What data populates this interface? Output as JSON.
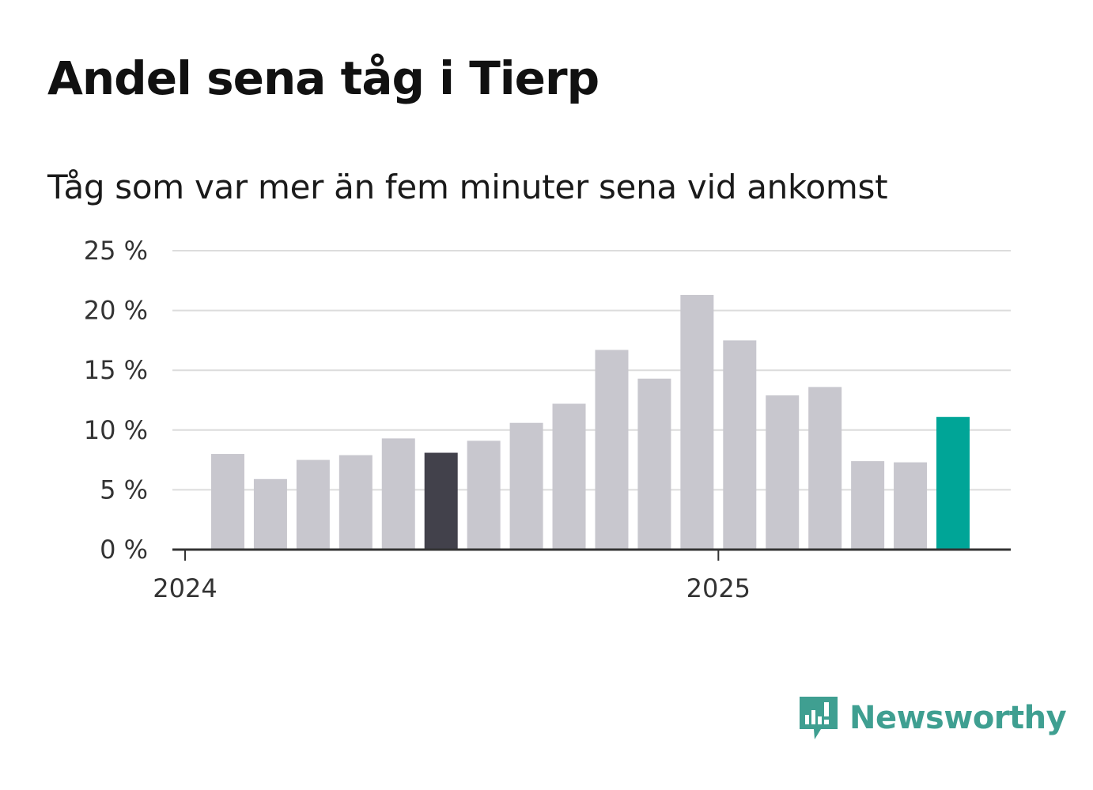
{
  "title": "Andel sena tåg i Tierp",
  "subtitle": "Tåg som var mer än fem minuter sena vid ankomst",
  "brand": {
    "name": "Newsworthy",
    "color": "#3f9f91",
    "icon": "newsworthy-logo-icon"
  },
  "colors": {
    "bar": "#c8c7ce",
    "highlight": "#42414b",
    "latest": "#00a597",
    "grid": "#dcdcdc",
    "axis": "#333333"
  },
  "chart_data": {
    "type": "bar",
    "title": "Andel sena tåg i Tierp",
    "subtitle": "Tåg som var mer än fem minuter sena vid ankomst",
    "xlabel": "",
    "ylabel": "",
    "ylim": [
      0,
      25
    ],
    "yticks": [
      0,
      5,
      10,
      15,
      20,
      25
    ],
    "ytick_labels": [
      "0 %",
      "5 %",
      "10 %",
      "15 %",
      "20 %",
      "25 %"
    ],
    "xtick_labels": [
      "2024",
      "2025"
    ],
    "grid": true,
    "highlight_index": 5,
    "latest_index": 17,
    "values": [
      8.0,
      5.9,
      7.5,
      7.9,
      9.3,
      8.1,
      9.1,
      10.6,
      12.2,
      16.7,
      14.3,
      21.3,
      17.5,
      12.9,
      13.6,
      7.4,
      7.3,
      11.1
    ]
  }
}
